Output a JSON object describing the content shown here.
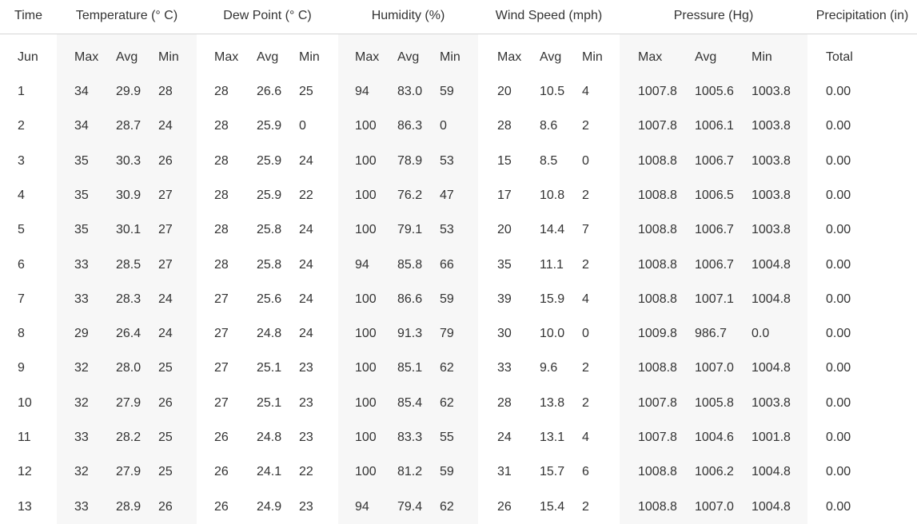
{
  "headers": [
    "Time",
    "Temperature (° C)",
    "Dew Point (° C)",
    "Humidity (%)",
    "Wind Speed (mph)",
    "Pressure (Hg)",
    "Precipitation (in)"
  ],
  "subheaders": [
    "Jun",
    "Max",
    "Avg",
    "Min",
    "Max",
    "Avg",
    "Min",
    "Max",
    "Avg",
    "Min",
    "Max",
    "Avg",
    "Min",
    "Max",
    "Avg",
    "Min",
    "Total"
  ],
  "rows": [
    [
      "1",
      "34",
      "29.9",
      "28",
      "28",
      "26.6",
      "25",
      "94",
      "83.0",
      "59",
      "20",
      "10.5",
      "4",
      "1007.8",
      "1005.6",
      "1003.8",
      "0.00"
    ],
    [
      "2",
      "34",
      "28.7",
      "24",
      "28",
      "25.9",
      "0",
      "100",
      "86.3",
      "0",
      "28",
      "8.6",
      "2",
      "1007.8",
      "1006.1",
      "1003.8",
      "0.00"
    ],
    [
      "3",
      "35",
      "30.3",
      "26",
      "28",
      "25.9",
      "24",
      "100",
      "78.9",
      "53",
      "15",
      "8.5",
      "0",
      "1008.8",
      "1006.7",
      "1003.8",
      "0.00"
    ],
    [
      "4",
      "35",
      "30.9",
      "27",
      "28",
      "25.9",
      "22",
      "100",
      "76.2",
      "47",
      "17",
      "10.8",
      "2",
      "1008.8",
      "1006.5",
      "1003.8",
      "0.00"
    ],
    [
      "5",
      "35",
      "30.1",
      "27",
      "28",
      "25.8",
      "24",
      "100",
      "79.1",
      "53",
      "20",
      "14.4",
      "7",
      "1008.8",
      "1006.7",
      "1003.8",
      "0.00"
    ],
    [
      "6",
      "33",
      "28.5",
      "27",
      "28",
      "25.8",
      "24",
      "94",
      "85.8",
      "66",
      "35",
      "11.1",
      "2",
      "1008.8",
      "1006.7",
      "1004.8",
      "0.00"
    ],
    [
      "7",
      "33",
      "28.3",
      "24",
      "27",
      "25.6",
      "24",
      "100",
      "86.6",
      "59",
      "39",
      "15.9",
      "4",
      "1008.8",
      "1007.1",
      "1004.8",
      "0.00"
    ],
    [
      "8",
      "29",
      "26.4",
      "24",
      "27",
      "24.8",
      "24",
      "100",
      "91.3",
      "79",
      "30",
      "10.0",
      "0",
      "1009.8",
      "986.7",
      "0.0",
      "0.00"
    ],
    [
      "9",
      "32",
      "28.0",
      "25",
      "27",
      "25.1",
      "23",
      "100",
      "85.1",
      "62",
      "33",
      "9.6",
      "2",
      "1008.8",
      "1007.0",
      "1004.8",
      "0.00"
    ],
    [
      "10",
      "32",
      "27.9",
      "26",
      "27",
      "25.1",
      "23",
      "100",
      "85.4",
      "62",
      "28",
      "13.8",
      "2",
      "1007.8",
      "1005.8",
      "1003.8",
      "0.00"
    ],
    [
      "11",
      "33",
      "28.2",
      "25",
      "26",
      "24.8",
      "23",
      "100",
      "83.3",
      "55",
      "24",
      "13.1",
      "4",
      "1007.8",
      "1004.6",
      "1001.8",
      "0.00"
    ],
    [
      "12",
      "32",
      "27.9",
      "25",
      "26",
      "24.1",
      "22",
      "100",
      "81.2",
      "59",
      "31",
      "15.7",
      "6",
      "1008.8",
      "1006.2",
      "1004.8",
      "0.00"
    ],
    [
      "13",
      "33",
      "28.9",
      "26",
      "26",
      "24.9",
      "23",
      "94",
      "79.4",
      "62",
      "26",
      "15.4",
      "2",
      "1008.8",
      "1007.0",
      "1004.8",
      "0.00"
    ]
  ]
}
